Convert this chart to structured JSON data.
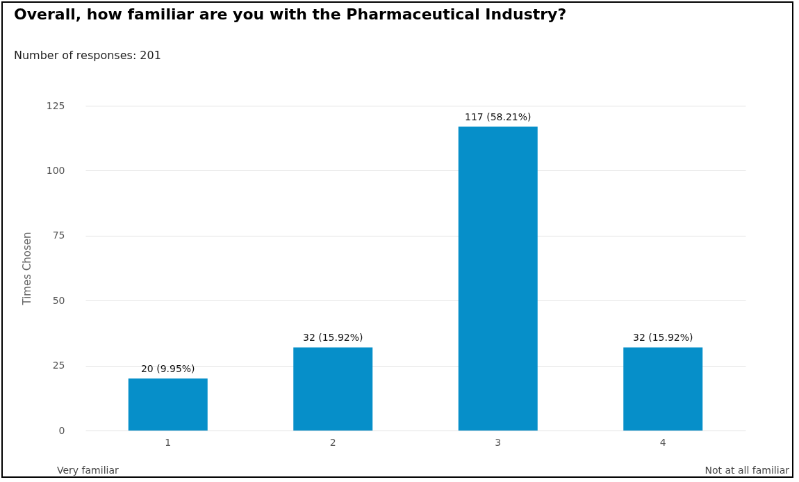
{
  "chart_data": {
    "type": "bar",
    "title": "Overall, how familiar are you with the Pharmaceutical Industry?",
    "subtitle": "Number of responses: 201",
    "ylabel": "Times Chosen",
    "categories": [
      "1",
      "2",
      "3",
      "4"
    ],
    "values": [
      20,
      32,
      117,
      32
    ],
    "value_labels": [
      "20 (9.95%)",
      "32 (15.92%)",
      "117 (58.21%)",
      "32 (15.92%)"
    ],
    "color": "#068fc9",
    "ylim": [
      0,
      125
    ],
    "yticks": [
      0,
      25,
      50,
      75,
      100,
      125
    ],
    "grid": "y",
    "annotations": [
      "Very familiar",
      "Not at all familiar"
    ]
  }
}
